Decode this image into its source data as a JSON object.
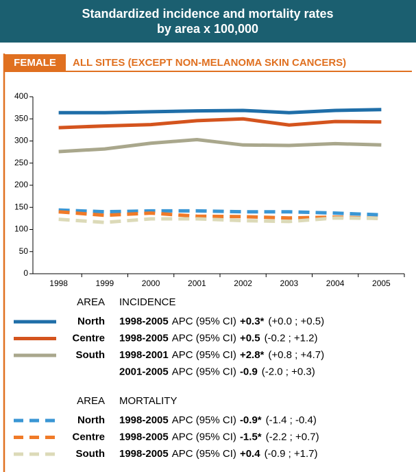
{
  "header": {
    "title_lines": [
      "Standardized incidence and mortality rates",
      "by area x 100,000"
    ]
  },
  "section": {
    "tab": "FEMALE",
    "title": "ALL SITES (EXCEPT NON-MELANOMA SKIN CANCERS)"
  },
  "chart_data": {
    "type": "line",
    "categories": [
      "1998",
      "1999",
      "2000",
      "2001",
      "2002",
      "2003",
      "2004",
      "2005"
    ],
    "ylim": [
      0,
      400
    ],
    "yticks": [
      0,
      50,
      100,
      150,
      200,
      250,
      300,
      350,
      400
    ],
    "grid": false,
    "groups": [
      {
        "area_label": "AREA",
        "title": "INCIDENCE",
        "dashed": false,
        "series": [
          {
            "name": "North",
            "color": "#1f6ea8",
            "values": [
              364,
              364,
              366,
              368,
              369,
              364,
              369,
              371
            ],
            "trends": [
              {
                "period": "1998-2005",
                "measure": "APC (95% CI)",
                "apc": "+0.3*",
                "ci": "(+0.0 ; +0.5)"
              }
            ]
          },
          {
            "name": "Centre",
            "color": "#d4541e",
            "values": [
              330,
              334,
              337,
              346,
              350,
              336,
              344,
              343
            ],
            "trends": [
              {
                "period": "1998-2005",
                "measure": "APC (95% CI)",
                "apc": "+0.5",
                "ci": "(-0.2 ; +1.2)"
              }
            ]
          },
          {
            "name": "South",
            "color": "#a9a78c",
            "values": [
              276,
              282,
              295,
              303,
              291,
              290,
              294,
              291
            ],
            "trends": [
              {
                "period": "1998-2001",
                "measure": "APC (95% CI)",
                "apc": "+2.8*",
                "ci": "(+0.8 ; +4.7)"
              },
              {
                "period": "2001-2005",
                "measure": "APC (95% CI)",
                "apc": "-0.9",
                "ci": "(-2.0 ; +0.3)"
              }
            ]
          }
        ]
      },
      {
        "area_label": "AREA",
        "title": "MORTALITY",
        "dashed": true,
        "series": [
          {
            "name": "North",
            "color": "#3a96d4",
            "values": [
              144,
              140,
              142,
              142,
              140,
              140,
              137,
              133
            ],
            "trends": [
              {
                "period": "1998-2005",
                "measure": "APC (95% CI)",
                "apc": "-0.9*",
                "ci": "(-1.4 ; -0.4)"
              }
            ]
          },
          {
            "name": "Centre",
            "color": "#f07a28",
            "values": [
              140,
              132,
              137,
              130,
              129,
              126,
              128,
              125
            ],
            "trends": [
              {
                "period": "1998-2005",
                "measure": "APC (95% CI)",
                "apc": "-1.5*",
                "ci": "(-2.2 ; +0.7)"
              }
            ]
          },
          {
            "name": "South",
            "color": "#dcdab8",
            "values": [
              123,
              116,
              124,
              124,
              120,
              118,
              126,
              125
            ],
            "trends": [
              {
                "period": "1998-2005",
                "measure": "APC (95% CI)",
                "apc": "+0.4",
                "ci": "(-0.9 ; +1.7)"
              }
            ]
          }
        ]
      }
    ]
  }
}
